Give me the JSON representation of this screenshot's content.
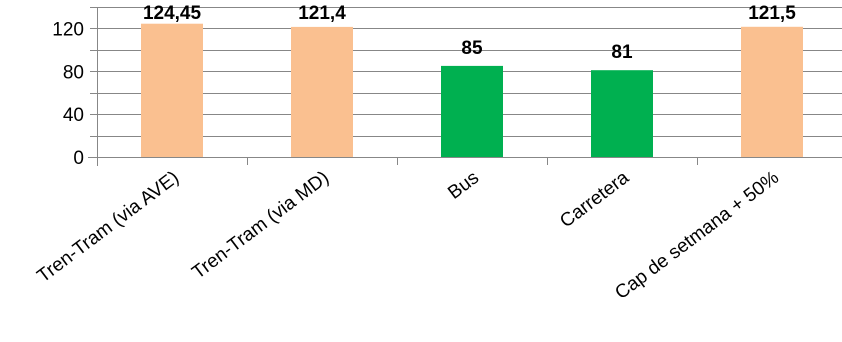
{
  "chart_data": {
    "type": "bar",
    "categories": [
      "Tren-Tram (via AVE)",
      "Tren-Tram (via MD)",
      "Bus",
      "Carretera",
      "Cap de setmana + 50%"
    ],
    "values": [
      124.45,
      121.4,
      85,
      81,
      121.5
    ],
    "data_labels": [
      "124,45",
      "121,4",
      "85",
      "81",
      "121,5"
    ],
    "bar_colors": [
      "#fac090",
      "#fac090",
      "#00b050",
      "#00b050",
      "#fac090"
    ],
    "y_ticks": [
      0,
      40,
      80,
      120
    ],
    "ylim": [
      0,
      140
    ],
    "minor_grid": 20,
    "grid": true,
    "title": "",
    "xlabel": "",
    "ylabel": ""
  }
}
